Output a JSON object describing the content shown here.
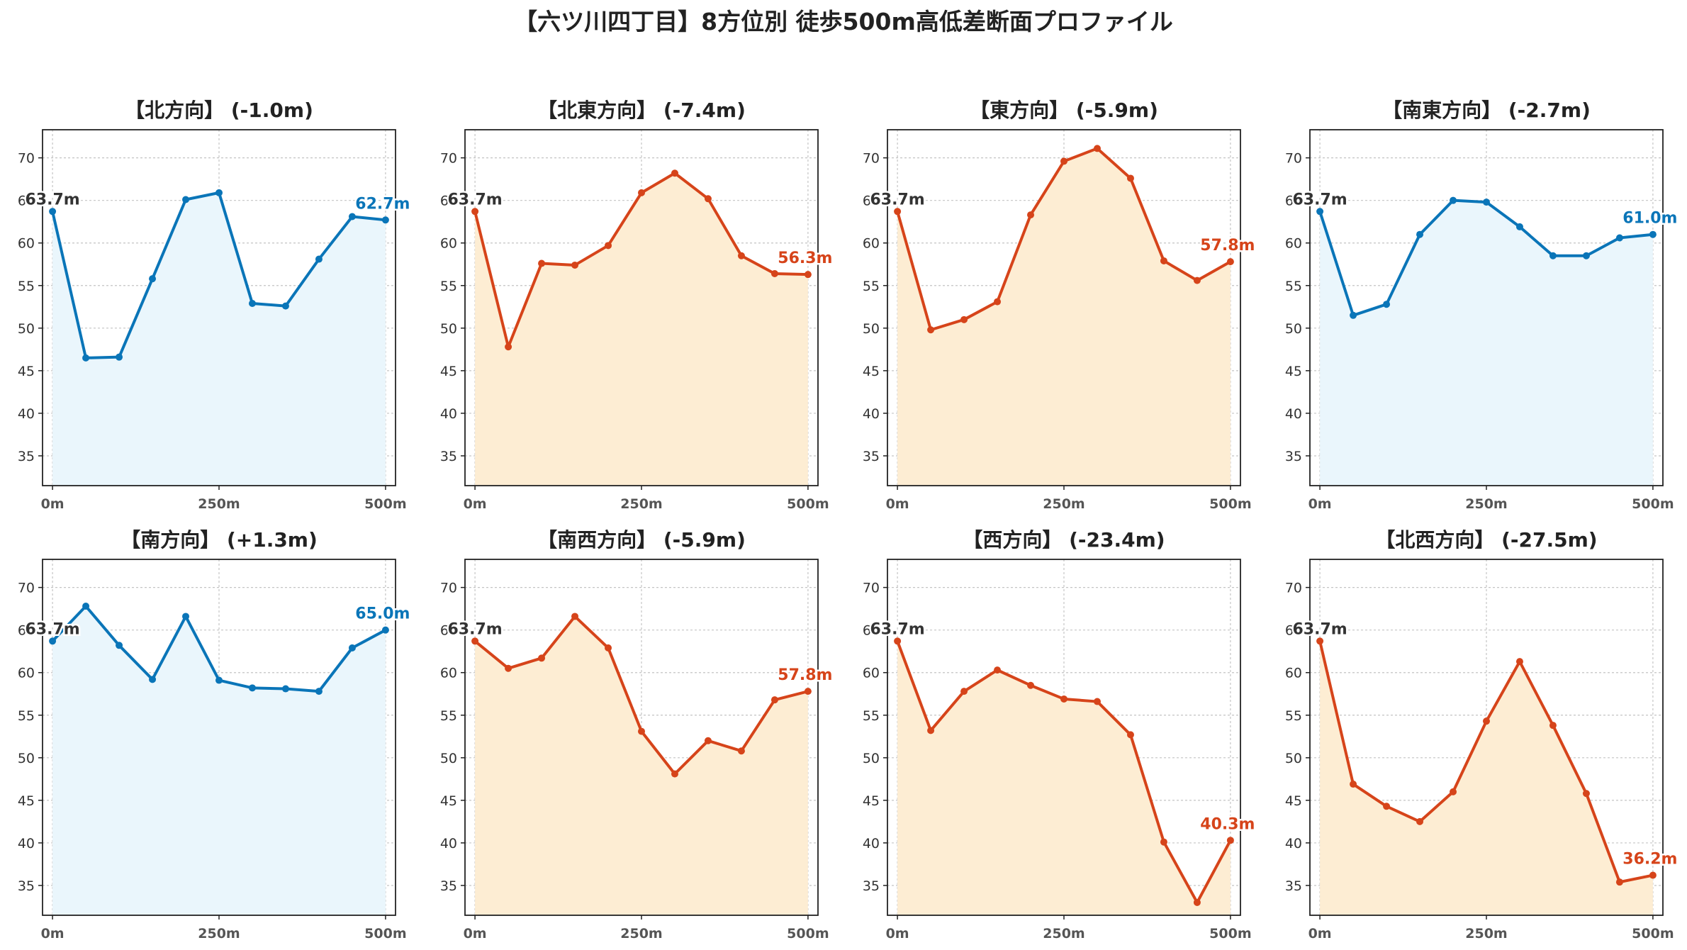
{
  "title": "【六ツ川四丁目】8方位別 徒歩500m高低差断面プロファイル",
  "colors": {
    "up_line": "#0a75b8",
    "up_fill": "#eaf6fc",
    "down_line": "#d6441a",
    "down_fill": "#fdedd3",
    "start_label": "#333333"
  },
  "chart_data": [
    {
      "type": "area",
      "title": "【北方向】 (-1.0m)",
      "x": [
        0,
        50,
        100,
        150,
        200,
        250,
        300,
        350,
        400,
        450,
        500
      ],
      "x_ticks": [
        0,
        250,
        500
      ],
      "x_tick_labels": [
        "0m",
        "250m",
        "500m"
      ],
      "values": [
        63.7,
        46.5,
        46.6,
        55.8,
        65.1,
        65.9,
        52.9,
        52.6,
        58.1,
        63.1,
        62.7
      ],
      "ylim": [
        31.5,
        73.3
      ],
      "y_ticks": [
        35,
        40,
        45,
        50,
        55,
        60,
        65,
        70
      ],
      "start_label": "63.7m",
      "end_label": "62.7m",
      "trend": "up",
      "grid": true
    },
    {
      "type": "area",
      "title": "【北東方向】 (-7.4m)",
      "x": [
        0,
        50,
        100,
        150,
        200,
        250,
        300,
        350,
        400,
        450,
        500
      ],
      "x_ticks": [
        0,
        250,
        500
      ],
      "x_tick_labels": [
        "0m",
        "250m",
        "500m"
      ],
      "values": [
        63.7,
        47.8,
        57.6,
        57.4,
        59.7,
        65.9,
        68.2,
        65.2,
        58.5,
        56.4,
        56.3
      ],
      "ylim": [
        31.5,
        73.3
      ],
      "y_ticks": [
        35,
        40,
        45,
        50,
        55,
        60,
        65,
        70
      ],
      "start_label": "63.7m",
      "end_label": "56.3m",
      "trend": "down",
      "grid": true
    },
    {
      "type": "area",
      "title": "【東方向】 (-5.9m)",
      "x": [
        0,
        50,
        100,
        150,
        200,
        250,
        300,
        350,
        400,
        450,
        500
      ],
      "x_ticks": [
        0,
        250,
        500
      ],
      "x_tick_labels": [
        "0m",
        "250m",
        "500m"
      ],
      "values": [
        63.7,
        49.8,
        51.0,
        53.1,
        63.3,
        69.6,
        71.1,
        67.6,
        57.9,
        55.6,
        57.8
      ],
      "ylim": [
        31.5,
        73.3
      ],
      "y_ticks": [
        35,
        40,
        45,
        50,
        55,
        60,
        65,
        70
      ],
      "start_label": "63.7m",
      "end_label": "57.8m",
      "trend": "down",
      "grid": true
    },
    {
      "type": "area",
      "title": "【南東方向】 (-2.7m)",
      "x": [
        0,
        50,
        100,
        150,
        200,
        250,
        300,
        350,
        400,
        450,
        500
      ],
      "x_ticks": [
        0,
        250,
        500
      ],
      "x_tick_labels": [
        "0m",
        "250m",
        "500m"
      ],
      "values": [
        63.7,
        51.5,
        52.8,
        61.0,
        65.0,
        64.8,
        61.9,
        58.5,
        58.5,
        60.6,
        61.0
      ],
      "ylim": [
        31.5,
        73.3
      ],
      "y_ticks": [
        35,
        40,
        45,
        50,
        55,
        60,
        65,
        70
      ],
      "start_label": "63.7m",
      "end_label": "61.0m",
      "trend": "up",
      "grid": true
    },
    {
      "type": "area",
      "title": "【南方向】 (+1.3m)",
      "x": [
        0,
        50,
        100,
        150,
        200,
        250,
        300,
        350,
        400,
        450,
        500
      ],
      "x_ticks": [
        0,
        250,
        500
      ],
      "x_tick_labels": [
        "0m",
        "250m",
        "500m"
      ],
      "values": [
        63.7,
        67.8,
        63.2,
        59.2,
        66.6,
        59.1,
        58.2,
        58.1,
        57.8,
        62.9,
        65.0
      ],
      "ylim": [
        31.5,
        73.3
      ],
      "y_ticks": [
        35,
        40,
        45,
        50,
        55,
        60,
        65,
        70
      ],
      "start_label": "63.7m",
      "end_label": "65.0m",
      "trend": "up",
      "grid": true
    },
    {
      "type": "area",
      "title": "【南西方向】 (-5.9m)",
      "x": [
        0,
        50,
        100,
        150,
        200,
        250,
        300,
        350,
        400,
        450,
        500
      ],
      "x_ticks": [
        0,
        250,
        500
      ],
      "x_tick_labels": [
        "0m",
        "250m",
        "500m"
      ],
      "values": [
        63.7,
        60.5,
        61.7,
        66.6,
        62.9,
        53.1,
        48.1,
        52.0,
        50.8,
        56.8,
        57.8
      ],
      "ylim": [
        31.5,
        73.3
      ],
      "y_ticks": [
        35,
        40,
        45,
        50,
        55,
        60,
        65,
        70
      ],
      "start_label": "63.7m",
      "end_label": "57.8m",
      "trend": "down",
      "grid": true
    },
    {
      "type": "area",
      "title": "【西方向】 (-23.4m)",
      "x": [
        0,
        50,
        100,
        150,
        200,
        250,
        300,
        350,
        400,
        450,
        500
      ],
      "x_ticks": [
        0,
        250,
        500
      ],
      "x_tick_labels": [
        "0m",
        "250m",
        "500m"
      ],
      "values": [
        63.7,
        53.2,
        57.8,
        60.3,
        58.5,
        56.9,
        56.6,
        52.7,
        40.1,
        33.0,
        40.3
      ],
      "ylim": [
        31.5,
        73.3
      ],
      "y_ticks": [
        35,
        40,
        45,
        50,
        55,
        60,
        65,
        70
      ],
      "start_label": "63.7m",
      "end_label": "40.3m",
      "trend": "down",
      "grid": true
    },
    {
      "type": "area",
      "title": "【北西方向】 (-27.5m)",
      "x": [
        0,
        50,
        100,
        150,
        200,
        250,
        300,
        350,
        400,
        450,
        500
      ],
      "x_ticks": [
        0,
        250,
        500
      ],
      "x_tick_labels": [
        "0m",
        "250m",
        "500m"
      ],
      "values": [
        63.7,
        46.9,
        44.3,
        42.5,
        46.0,
        54.3,
        61.3,
        53.8,
        45.8,
        35.4,
        36.2
      ],
      "ylim": [
        31.5,
        73.3
      ],
      "y_ticks": [
        35,
        40,
        45,
        50,
        55,
        60,
        65,
        70
      ],
      "start_label": "63.7m",
      "end_label": "36.2m",
      "trend": "down",
      "grid": true
    }
  ]
}
